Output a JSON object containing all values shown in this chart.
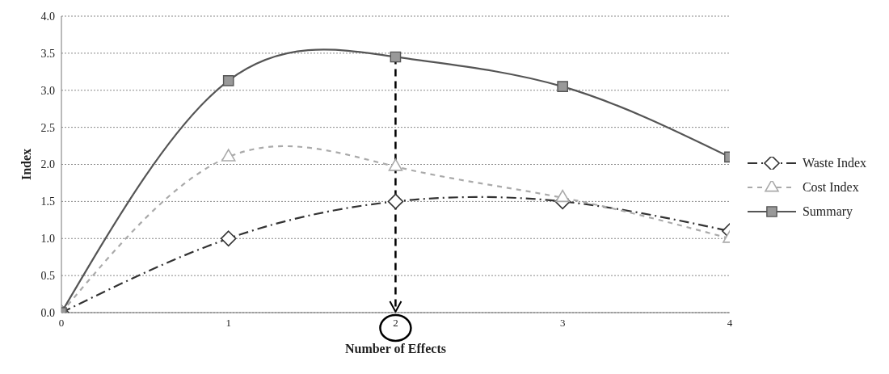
{
  "chart_data": {
    "type": "line",
    "xlabel": "Number of Effects",
    "ylabel": "Index",
    "x": [
      0,
      1,
      2,
      3,
      4
    ],
    "xlim": [
      0,
      4
    ],
    "xticks": [
      0,
      1,
      2,
      3,
      4
    ],
    "ylim": [
      0,
      4
    ],
    "yticks": [
      {
        "value": 0,
        "label": "0.0"
      },
      {
        "value": 0.5,
        "label": "0.5"
      },
      {
        "value": 1,
        "label": "1.0"
      },
      {
        "value": 1.5,
        "label": "1.5"
      },
      {
        "value": 2,
        "label": "2.0"
      },
      {
        "value": 2.5,
        "label": "2.5"
      },
      {
        "value": 3,
        "label": "3.0"
      },
      {
        "value": 3.5,
        "label": "3.5"
      },
      {
        "value": 4,
        "label": "4.0"
      }
    ],
    "grid": "y",
    "legend": "right",
    "series": [
      {
        "name": "Waste Index",
        "color": "#333333",
        "values": [
          0,
          1.0,
          1.5,
          1.5,
          1.1
        ],
        "marker": "diamond",
        "line_style": "dashed"
      },
      {
        "name": "Cost Index",
        "color": "#aaaaaa",
        "values": [
          0,
          2.1,
          1.97,
          1.55,
          1.0
        ],
        "marker": "triangle",
        "line_style": "dotted"
      },
      {
        "name": "Summary",
        "color": "#555555",
        "values": [
          0,
          3.13,
          3.45,
          3.05,
          2.1
        ],
        "marker": "square",
        "line_style": "solid"
      }
    ],
    "ref_lines": [
      {
        "axis": "x",
        "value": 2,
        "line_style": "dashed",
        "color": "#000000"
      }
    ]
  }
}
